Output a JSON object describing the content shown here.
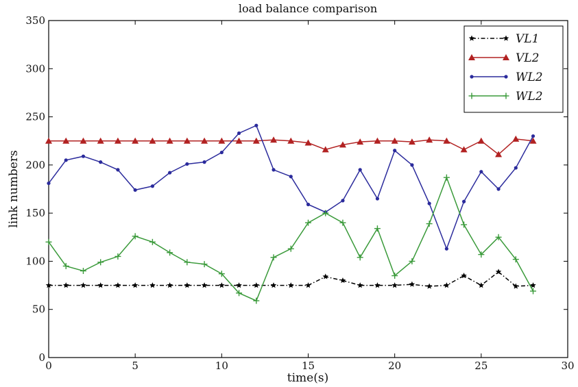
{
  "chart_data": {
    "type": "line",
    "title": "load balance comparison",
    "xlabel": "time(s)",
    "ylabel": "link numbers",
    "xlim": [
      0,
      30
    ],
    "ylim": [
      0,
      350
    ],
    "xticks": [
      0,
      5,
      10,
      15,
      20,
      25,
      30
    ],
    "yticks": [
      0,
      50,
      100,
      150,
      200,
      250,
      300,
      350
    ],
    "grid": false,
    "legend_position": "top-right",
    "x": [
      0,
      1,
      2,
      3,
      4,
      5,
      6,
      7,
      8,
      9,
      10,
      11,
      12,
      13,
      14,
      15,
      16,
      17,
      18,
      19,
      20,
      21,
      22,
      23,
      24,
      25,
      26,
      27,
      28
    ],
    "series": [
      {
        "name": "VL1",
        "color": "#000000",
        "marker": "star",
        "line_style": "dashdot",
        "values": [
          75,
          75,
          75,
          75,
          75,
          75,
          75,
          75,
          75,
          75,
          75,
          75,
          75,
          75,
          75,
          75,
          84,
          80,
          75,
          75,
          75,
          76,
          74,
          75,
          85,
          75,
          89,
          74,
          75
        ]
      },
      {
        "name": "VL2",
        "color": "#b22222",
        "marker": "triangle",
        "line_style": "solid",
        "values": [
          225,
          225,
          225,
          225,
          225,
          225,
          225,
          225,
          225,
          225,
          225,
          225,
          225,
          226,
          225,
          223,
          216,
          221,
          224,
          225,
          225,
          224,
          226,
          225,
          216,
          225,
          211,
          227,
          225
        ]
      },
      {
        "name": "WL2",
        "color": "#2b2b9c",
        "marker": "circle",
        "line_style": "solid",
        "values": [
          181,
          205,
          209,
          203,
          195,
          174,
          178,
          192,
          201,
          203,
          213,
          233,
          241,
          195,
          188,
          159,
          151,
          163,
          195,
          165,
          215,
          200,
          160,
          113,
          162,
          193,
          175,
          197,
          230
        ]
      },
      {
        "name": "WL2",
        "color": "#3a9a3a",
        "marker": "plus",
        "line_style": "solid",
        "values": [
          120,
          95,
          90,
          99,
          105,
          126,
          120,
          109,
          99,
          97,
          87,
          67,
          59,
          104,
          113,
          140,
          150,
          140,
          104,
          134,
          85,
          100,
          139,
          187,
          138,
          107,
          125,
          102,
          69
        ]
      }
    ]
  }
}
